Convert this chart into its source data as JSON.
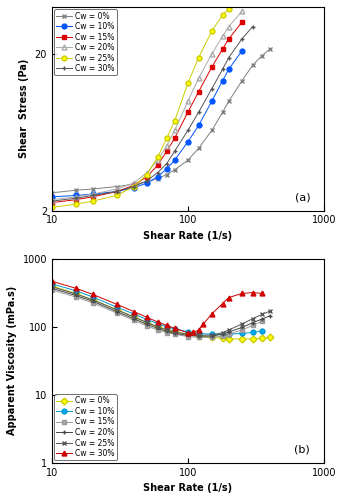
{
  "panel_a": {
    "xlabel": "Shear Rate (1/s)",
    "ylabel": "Shear  Stress (Pa)",
    "xlim": [
      10,
      1000
    ],
    "ylim": [
      2,
      40
    ],
    "series": [
      {
        "label": "Cw = 0%",
        "color": "#808080",
        "marker": "x",
        "markerfacecolor": "none",
        "x": [
          10,
          15,
          20,
          30,
          40,
          50,
          60,
          70,
          80,
          100,
          120,
          150,
          180,
          200,
          250,
          300,
          350,
          400
        ],
        "y": [
          2.6,
          2.7,
          2.75,
          2.85,
          2.95,
          3.05,
          3.2,
          3.4,
          3.65,
          4.2,
          5.0,
          6.5,
          8.5,
          10.0,
          13.5,
          17.0,
          19.5,
          21.5
        ]
      },
      {
        "label": "Cw = 10%",
        "color": "#0055ff",
        "marker": "o",
        "markerfacecolor": "#0055ff",
        "x": [
          10,
          15,
          20,
          30,
          40,
          50,
          60,
          70,
          80,
          100,
          120,
          150,
          180,
          200,
          250
        ],
        "y": [
          2.45,
          2.5,
          2.55,
          2.65,
          2.8,
          3.0,
          3.3,
          3.7,
          4.2,
          5.5,
          7.0,
          10.0,
          13.5,
          16.0,
          21.0
        ]
      },
      {
        "label": "Cw = 15%",
        "color": "#dd0000",
        "marker": "s",
        "markerfacecolor": "#dd0000",
        "x": [
          10,
          15,
          20,
          30,
          40,
          50,
          60,
          70,
          80,
          100,
          120,
          150,
          180,
          200,
          250
        ],
        "y": [
          2.25,
          2.35,
          2.45,
          2.65,
          2.9,
          3.3,
          3.9,
          4.8,
          5.8,
          8.5,
          11.5,
          16.5,
          21.5,
          25.0,
          32.0
        ]
      },
      {
        "label": "Cw = 20%",
        "color": "#aaaaaa",
        "marker": "^",
        "markerfacecolor": "none",
        "x": [
          10,
          15,
          20,
          30,
          40,
          50,
          60,
          70,
          80,
          100,
          120,
          150,
          180,
          200,
          250
        ],
        "y": [
          2.35,
          2.45,
          2.55,
          2.75,
          3.0,
          3.5,
          4.2,
          5.2,
          6.5,
          10.0,
          14.0,
          20.0,
          26.0,
          30.0,
          37.5
        ]
      },
      {
        "label": "Cw = 25%",
        "color": "#cccc00",
        "marker": "o",
        "markerfacecolor": "#ffff00",
        "x": [
          10,
          15,
          20,
          30,
          40,
          50,
          60,
          70,
          80,
          100,
          120,
          150,
          180,
          200
        ],
        "y": [
          2.1,
          2.2,
          2.3,
          2.5,
          2.85,
          3.4,
          4.4,
          5.8,
          7.5,
          13.0,
          19.0,
          28.0,
          35.5,
          39.0
        ]
      },
      {
        "label": "Cw = 30%",
        "color": "#555555",
        "marker": "+",
        "markerfacecolor": "none",
        "x": [
          10,
          15,
          20,
          30,
          40,
          50,
          60,
          70,
          80,
          100,
          120,
          150,
          180,
          200,
          250,
          300
        ],
        "y": [
          2.3,
          2.4,
          2.5,
          2.65,
          2.85,
          3.1,
          3.5,
          4.0,
          4.8,
          6.5,
          8.5,
          12.0,
          16.0,
          19.0,
          25.0,
          30.0
        ]
      }
    ]
  },
  "panel_b": {
    "xlabel": "Shear Rate (1/s)",
    "ylabel": "Apparent Viscosity (mPa.s)",
    "xlim": [
      10,
      1000
    ],
    "ylim": [
      1,
      1000
    ],
    "series": [
      {
        "label": "Cw = 0%",
        "color": "#cccc00",
        "marker": "D",
        "markerfacecolor": "#ffff00",
        "x": [
          10,
          15,
          20,
          30,
          40,
          50,
          60,
          70,
          80,
          100,
          120,
          150,
          180,
          200,
          250,
          300,
          350,
          400
        ],
        "y": [
          400,
          310,
          250,
          180,
          140,
          115,
          100,
          90,
          85,
          78,
          74,
          70,
          68,
          67,
          66,
          67,
          68,
          70
        ]
      },
      {
        "label": "Cw = 10%",
        "color": "#0099cc",
        "marker": "o",
        "markerfacecolor": "#00aaff",
        "x": [
          10,
          15,
          20,
          30,
          40,
          50,
          60,
          70,
          80,
          100,
          120,
          150,
          180,
          200,
          250,
          300,
          350
        ],
        "y": [
          430,
          340,
          275,
          195,
          155,
          128,
          112,
          100,
          93,
          85,
          80,
          78,
          77,
          78,
          80,
          83,
          87
        ]
      },
      {
        "label": "Cw = 15%",
        "color": "#999999",
        "marker": "s",
        "markerfacecolor": "#aaaaaa",
        "x": [
          10,
          15,
          20,
          30,
          40,
          50,
          60,
          70,
          80,
          100,
          120,
          150,
          180,
          200,
          250,
          300,
          350
        ],
        "y": [
          350,
          275,
          225,
          160,
          125,
          103,
          90,
          82,
          78,
          72,
          70,
          70,
          73,
          78,
          90,
          105,
          120
        ]
      },
      {
        "label": "Cw = 20%",
        "color": "#444444",
        "marker": "+",
        "markerfacecolor": "none",
        "x": [
          10,
          15,
          20,
          30,
          40,
          50,
          60,
          70,
          80,
          100,
          120,
          150,
          180,
          200,
          250,
          300,
          350,
          400
        ],
        "y": [
          370,
          290,
          238,
          168,
          132,
          109,
          95,
          86,
          80,
          75,
          73,
          73,
          78,
          84,
          98,
          115,
          130,
          145
        ]
      },
      {
        "label": "Cw = 25%",
        "color": "#555555",
        "marker": "x",
        "markerfacecolor": "none",
        "x": [
          10,
          15,
          20,
          30,
          40,
          50,
          60,
          70,
          80,
          100,
          120,
          150,
          180,
          200,
          250,
          300,
          350,
          400
        ],
        "y": [
          390,
          305,
          250,
          178,
          140,
          116,
          100,
          90,
          84,
          78,
          75,
          76,
          82,
          90,
          110,
          132,
          152,
          170
        ]
      },
      {
        "label": "Cw = 30%",
        "color": "#cc0000",
        "marker": "^",
        "markerfacecolor": "#dd0000",
        "x": [
          10,
          15,
          20,
          30,
          40,
          50,
          60,
          70,
          80,
          100,
          110,
          120,
          130,
          150,
          180,
          200,
          250,
          300,
          350
        ],
        "y": [
          470,
          370,
          300,
          215,
          168,
          138,
          118,
          105,
          95,
          82,
          83,
          90,
          110,
          155,
          220,
          270,
          310,
          320,
          310
        ]
      }
    ]
  }
}
